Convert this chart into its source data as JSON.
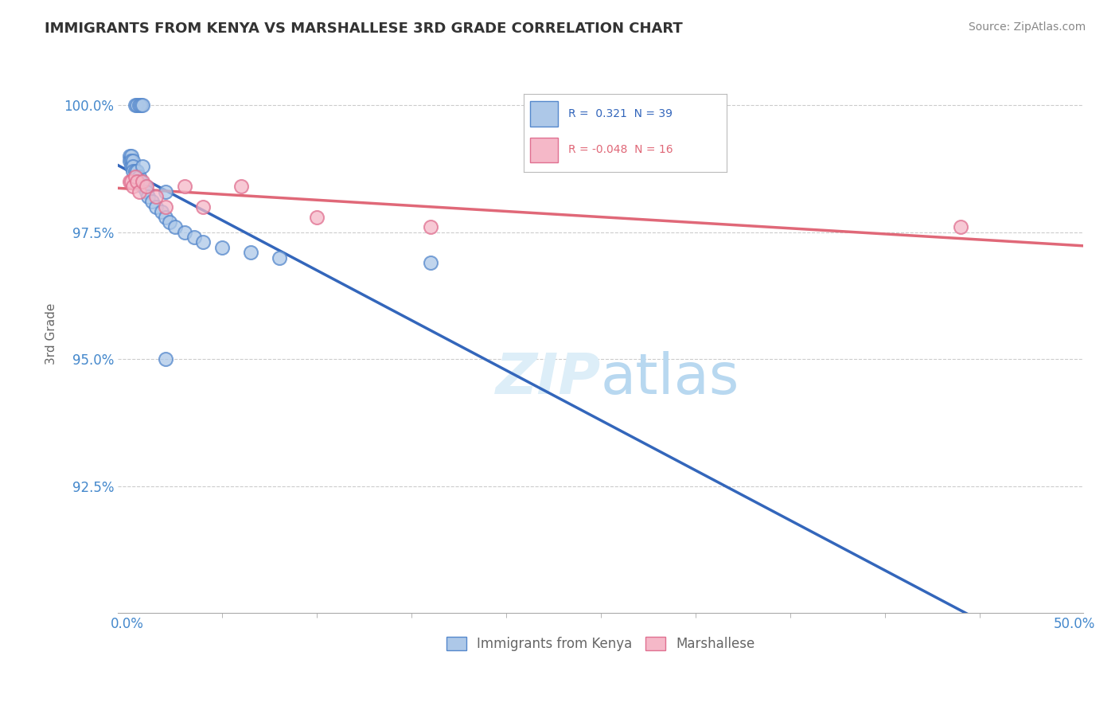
{
  "title": "IMMIGRANTS FROM KENYA VS MARSHALLESE 3RD GRADE CORRELATION CHART",
  "source_text": "Source: ZipAtlas.com",
  "ylabel": "3rd Grade",
  "xlim": [
    -0.005,
    0.505
  ],
  "ylim": [
    0.9,
    1.01
  ],
  "xtick_positions": [
    0.0,
    0.5
  ],
  "xtick_labels": [
    "0.0%",
    "50.0%"
  ],
  "ytick_positions": [
    0.925,
    0.95,
    0.975,
    1.0
  ],
  "ytick_labels": [
    "92.5%",
    "95.0%",
    "97.5%",
    "100.0%"
  ],
  "legend_labels": [
    "Immigrants from Kenya",
    "Marshallese"
  ],
  "R_kenya": 0.321,
  "N_kenya": 39,
  "R_marsh": -0.048,
  "N_marsh": 16,
  "kenya_fill": "#adc8e8",
  "kenya_edge": "#5588cc",
  "marsh_fill": "#f5b8c8",
  "marsh_edge": "#e07090",
  "kenya_line_color": "#3366bb",
  "marsh_line_color": "#e06878",
  "grid_color": "#cccccc",
  "title_color": "#333333",
  "tick_color": "#4488cc",
  "source_color": "#888888",
  "watermark_color": "#ddeef8",
  "kenya_x": [
    0.004,
    0.005,
    0.006,
    0.007,
    0.008,
    0.001,
    0.001,
    0.002,
    0.002,
    0.002,
    0.003,
    0.003,
    0.003,
    0.004,
    0.005,
    0.005,
    0.006,
    0.007,
    0.008,
    0.009,
    0.01,
    0.011,
    0.013,
    0.015,
    0.018,
    0.02,
    0.022,
    0.025,
    0.03,
    0.035,
    0.04,
    0.05,
    0.065,
    0.08,
    0.02,
    0.005,
    0.008,
    0.16,
    0.02
  ],
  "kenya_y": [
    1.0,
    1.0,
    1.0,
    1.0,
    1.0,
    0.99,
    0.989,
    0.99,
    0.989,
    0.988,
    0.989,
    0.988,
    0.987,
    0.987,
    0.986,
    0.987,
    0.986,
    0.985,
    0.984,
    0.984,
    0.983,
    0.982,
    0.981,
    0.98,
    0.979,
    0.978,
    0.977,
    0.976,
    0.975,
    0.974,
    0.973,
    0.972,
    0.971,
    0.97,
    0.983,
    0.985,
    0.988,
    0.969,
    0.95
  ],
  "marsh_x": [
    0.001,
    0.002,
    0.003,
    0.004,
    0.005,
    0.006,
    0.008,
    0.01,
    0.015,
    0.02,
    0.03,
    0.04,
    0.06,
    0.1,
    0.16,
    0.44
  ],
  "marsh_y": [
    0.985,
    0.985,
    0.984,
    0.986,
    0.985,
    0.983,
    0.985,
    0.984,
    0.982,
    0.98,
    0.984,
    0.98,
    0.984,
    0.978,
    0.976,
    0.976
  ]
}
